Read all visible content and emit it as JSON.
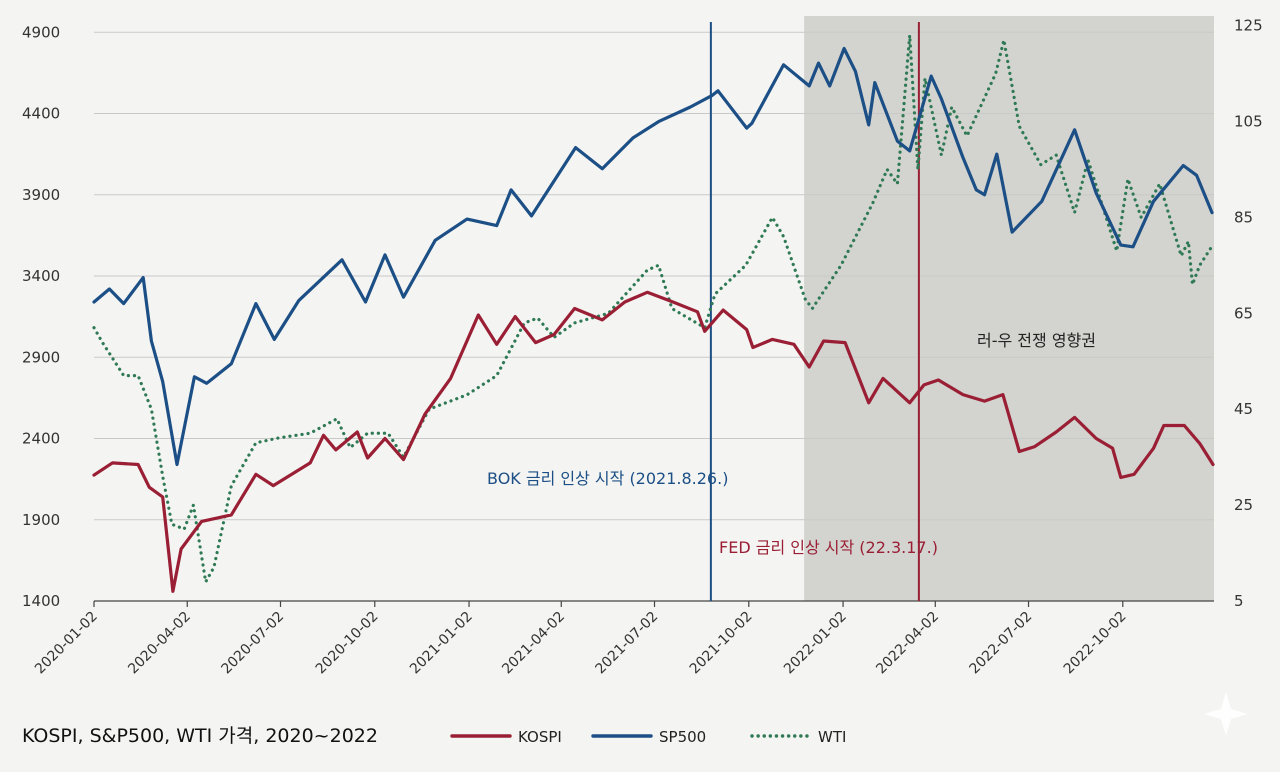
{
  "chart_data": {
    "type": "line",
    "title": "KOSPI, S&P500, WTI 가격, 2020~2022",
    "x_ticks": [
      "2020-01-02",
      "2020-04-02",
      "2020-07-02",
      "2020-10-02",
      "2021-01-02",
      "2021-04-02",
      "2021-07-02",
      "2021-10-02",
      "2022-01-02",
      "2022-04-02",
      "2022-07-02",
      "2022-10-02"
    ],
    "x_range": [
      "2020-01-02",
      "2022-12-30"
    ],
    "left_axis": {
      "ticks": [
        "1400",
        "1900",
        "2400",
        "2900",
        "3400",
        "3900",
        "4400",
        "4900"
      ],
      "range": [
        1400,
        5000
      ]
    },
    "right_axis": {
      "ticks": [
        "5",
        "25",
        "45",
        "65",
        "85",
        "105",
        "125"
      ],
      "range": [
        5,
        127
      ]
    },
    "grid": true,
    "legend_position": "bottom",
    "legend": [
      {
        "name": "KOSPI",
        "color": "#9a1f35",
        "style": "solid"
      },
      {
        "name": "SP500",
        "color": "#1c4f86",
        "style": "solid"
      },
      {
        "name": "WTI",
        "color": "#2f7a55",
        "style": "dotted"
      }
    ],
    "series": [
      {
        "name": "KOSPI",
        "axis": "left",
        "color": "#9a1f35",
        "points": [
          [
            "2020-01-02",
            2175
          ],
          [
            "2020-01-20",
            2250
          ],
          [
            "2020-02-14",
            2240
          ],
          [
            "2020-02-25",
            2100
          ],
          [
            "2020-03-09",
            2040
          ],
          [
            "2020-03-19",
            1460
          ],
          [
            "2020-03-27",
            1720
          ],
          [
            "2020-04-16",
            1890
          ],
          [
            "2020-05-15",
            1930
          ],
          [
            "2020-06-08",
            2180
          ],
          [
            "2020-06-25",
            2110
          ],
          [
            "2020-07-31",
            2250
          ],
          [
            "2020-08-13",
            2420
          ],
          [
            "2020-08-25",
            2330
          ],
          [
            "2020-09-15",
            2440
          ],
          [
            "2020-09-25",
            2280
          ],
          [
            "2020-10-12",
            2400
          ],
          [
            "2020-10-30",
            2270
          ],
          [
            "2020-11-20",
            2550
          ],
          [
            "2020-12-15",
            2770
          ],
          [
            "2021-01-11",
            3160
          ],
          [
            "2021-01-29",
            2980
          ],
          [
            "2021-02-16",
            3150
          ],
          [
            "2021-03-08",
            2990
          ],
          [
            "2021-03-26",
            3040
          ],
          [
            "2021-04-15",
            3200
          ],
          [
            "2021-05-12",
            3130
          ],
          [
            "2021-06-03",
            3240
          ],
          [
            "2021-06-25",
            3300
          ],
          [
            "2021-07-20",
            3240
          ],
          [
            "2021-08-13",
            3180
          ],
          [
            "2021-08-20",
            3060
          ],
          [
            "2021-09-07",
            3190
          ],
          [
            "2021-09-30",
            3070
          ],
          [
            "2021-10-06",
            2960
          ],
          [
            "2021-10-25",
            3010
          ],
          [
            "2021-11-15",
            2980
          ],
          [
            "2021-11-30",
            2840
          ],
          [
            "2021-12-14",
            3000
          ],
          [
            "2022-01-04",
            2990
          ],
          [
            "2022-01-27",
            2620
          ],
          [
            "2022-02-10",
            2770
          ],
          [
            "2022-03-08",
            2620
          ],
          [
            "2022-03-22",
            2730
          ],
          [
            "2022-04-05",
            2760
          ],
          [
            "2022-04-29",
            2670
          ],
          [
            "2022-05-20",
            2630
          ],
          [
            "2022-06-07",
            2670
          ],
          [
            "2022-06-23",
            2320
          ],
          [
            "2022-07-08",
            2350
          ],
          [
            "2022-07-29",
            2440
          ],
          [
            "2022-08-16",
            2530
          ],
          [
            "2022-09-06",
            2400
          ],
          [
            "2022-09-22",
            2340
          ],
          [
            "2022-09-30",
            2160
          ],
          [
            "2022-10-13",
            2180
          ],
          [
            "2022-11-01",
            2340
          ],
          [
            "2022-11-11",
            2480
          ],
          [
            "2022-12-01",
            2480
          ],
          [
            "2022-12-16",
            2370
          ],
          [
            "2022-12-29",
            2240
          ]
        ]
      },
      {
        "name": "SP500",
        "axis": "left",
        "color": "#1c4f86",
        "points": [
          [
            "2020-01-02",
            3240
          ],
          [
            "2020-01-17",
            3320
          ],
          [
            "2020-01-31",
            3230
          ],
          [
            "2020-02-19",
            3390
          ],
          [
            "2020-02-27",
            3000
          ],
          [
            "2020-03-09",
            2750
          ],
          [
            "2020-03-23",
            2240
          ],
          [
            "2020-04-09",
            2780
          ],
          [
            "2020-04-21",
            2740
          ],
          [
            "2020-05-15",
            2860
          ],
          [
            "2020-06-08",
            3230
          ],
          [
            "2020-06-26",
            3010
          ],
          [
            "2020-07-20",
            3250
          ],
          [
            "2020-08-31",
            3500
          ],
          [
            "2020-09-23",
            3240
          ],
          [
            "2020-10-12",
            3530
          ],
          [
            "2020-10-30",
            3270
          ],
          [
            "2020-11-30",
            3620
          ],
          [
            "2020-12-31",
            3750
          ],
          [
            "2021-01-29",
            3710
          ],
          [
            "2021-02-12",
            3930
          ],
          [
            "2021-03-04",
            3770
          ],
          [
            "2021-04-16",
            4190
          ],
          [
            "2021-05-12",
            4060
          ],
          [
            "2021-06-11",
            4250
          ],
          [
            "2021-07-06",
            4350
          ],
          [
            "2021-08-06",
            4440
          ],
          [
            "2021-08-27",
            4510
          ],
          [
            "2021-09-02",
            4540
          ],
          [
            "2021-09-30",
            4310
          ],
          [
            "2021-10-05",
            4340
          ],
          [
            "2021-11-05",
            4700
          ],
          [
            "2021-11-30",
            4570
          ],
          [
            "2021-12-09",
            4710
          ],
          [
            "2021-12-20",
            4570
          ],
          [
            "2022-01-03",
            4800
          ],
          [
            "2022-01-14",
            4660
          ],
          [
            "2022-01-27",
            4330
          ],
          [
            "2022-02-02",
            4590
          ],
          [
            "2022-02-24",
            4230
          ],
          [
            "2022-03-08",
            4170
          ],
          [
            "2022-03-29",
            4630
          ],
          [
            "2022-04-08",
            4490
          ],
          [
            "2022-04-29",
            4130
          ],
          [
            "2022-05-12",
            3930
          ],
          [
            "2022-05-20",
            3900
          ],
          [
            "2022-06-01",
            4150
          ],
          [
            "2022-06-16",
            3670
          ],
          [
            "2022-07-15",
            3860
          ],
          [
            "2022-08-16",
            4300
          ],
          [
            "2022-09-06",
            3910
          ],
          [
            "2022-09-30",
            3590
          ],
          [
            "2022-10-12",
            3580
          ],
          [
            "2022-11-01",
            3860
          ],
          [
            "2022-11-30",
            4080
          ],
          [
            "2022-12-13",
            4020
          ],
          [
            "2022-12-28",
            3790
          ]
        ]
      },
      {
        "name": "WTI",
        "axis": "right",
        "color": "#2f7a55",
        "points": [
          [
            "2020-01-02",
            62
          ],
          [
            "2020-01-10",
            59
          ],
          [
            "2020-01-31",
            52
          ],
          [
            "2020-02-14",
            52
          ],
          [
            "2020-02-27",
            45
          ],
          [
            "2020-03-09",
            31
          ],
          [
            "2020-03-18",
            21
          ],
          [
            "2020-03-30",
            20
          ],
          [
            "2020-04-08",
            25
          ],
          [
            "2020-04-20",
            9
          ],
          [
            "2020-04-28",
            12
          ],
          [
            "2020-05-15",
            29
          ],
          [
            "2020-06-08",
            38
          ],
          [
            "2020-06-30",
            39
          ],
          [
            "2020-07-31",
            40
          ],
          [
            "2020-08-26",
            43
          ],
          [
            "2020-09-08",
            37
          ],
          [
            "2020-09-25",
            40
          ],
          [
            "2020-10-15",
            40
          ],
          [
            "2020-10-30",
            35
          ],
          [
            "2020-11-24",
            45
          ],
          [
            "2020-12-31",
            48
          ],
          [
            "2021-01-29",
            52
          ],
          [
            "2021-02-25",
            63
          ],
          [
            "2021-03-10",
            64
          ],
          [
            "2021-03-26",
            60
          ],
          [
            "2021-04-15",
            63
          ],
          [
            "2021-05-18",
            65
          ],
          [
            "2021-06-25",
            74
          ],
          [
            "2021-07-06",
            75
          ],
          [
            "2021-07-19",
            66
          ],
          [
            "2021-08-20",
            62
          ],
          [
            "2021-08-30",
            69
          ],
          [
            "2021-09-29",
            75
          ],
          [
            "2021-10-25",
            85
          ],
          [
            "2021-11-05",
            81
          ],
          [
            "2021-11-26",
            68
          ],
          [
            "2021-12-03",
            66
          ],
          [
            "2021-12-31",
            75
          ],
          [
            "2022-01-31",
            88
          ],
          [
            "2022-02-14",
            95
          ],
          [
            "2022-02-24",
            92
          ],
          [
            "2022-03-08",
            123
          ],
          [
            "2022-03-16",
            95
          ],
          [
            "2022-03-23",
            114
          ],
          [
            "2022-04-08",
            98
          ],
          [
            "2022-04-18",
            108
          ],
          [
            "2022-05-03",
            102
          ],
          [
            "2022-05-31",
            115
          ],
          [
            "2022-06-08",
            122
          ],
          [
            "2022-06-23",
            104
          ],
          [
            "2022-07-14",
            96
          ],
          [
            "2022-07-29",
            98
          ],
          [
            "2022-08-16",
            86
          ],
          [
            "2022-08-29",
            97
          ],
          [
            "2022-09-26",
            78
          ],
          [
            "2022-10-07",
            93
          ],
          [
            "2022-10-20",
            85
          ],
          [
            "2022-11-07",
            92
          ],
          [
            "2022-11-28",
            77
          ],
          [
            "2022-12-05",
            80
          ],
          [
            "2022-12-09",
            71
          ],
          [
            "2022-12-16",
            75
          ],
          [
            "2022-12-28",
            79
          ]
        ]
      }
    ],
    "regions": [
      {
        "label": "러-우 전쟁 영향권",
        "from": "2021-11-25",
        "to": "2022-12-30",
        "color": "#d3d3cf"
      }
    ],
    "events": [
      {
        "label": "BOK 금리 인상 시작 (2021.8.26.)",
        "date": "2021-08-26",
        "color": "#1c4f86"
      },
      {
        "label": "FED 금리 인상 시작 (22.3.17.)",
        "date": "2022-03-17",
        "color": "#9a1f35"
      }
    ]
  }
}
